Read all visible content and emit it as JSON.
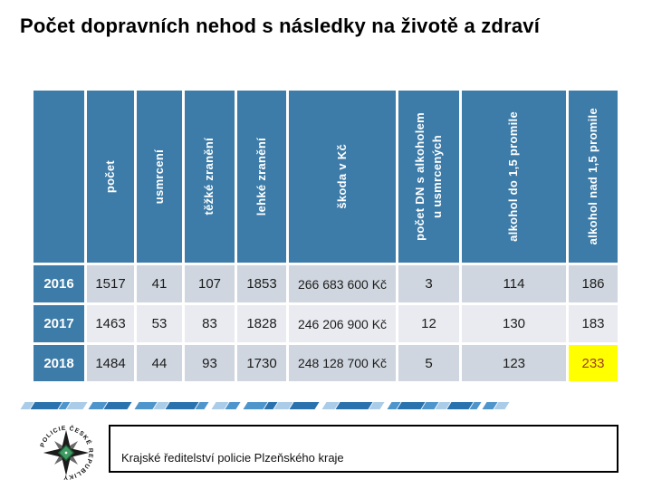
{
  "title": "Počet dopravních nehod s následky na životě a zdraví",
  "table": {
    "columns": [
      {
        "key": "pocet",
        "label": "počet"
      },
      {
        "key": "usmrceni",
        "label": "usmrcení"
      },
      {
        "key": "tezke-zraneni",
        "label": "těžké zranění"
      },
      {
        "key": "lehke-zraneni",
        "label": "lehké zranění"
      },
      {
        "key": "skoda-v-kc",
        "label": "škoda v Kč"
      },
      {
        "key": "pocet-dn-s-alkoholem-u-usmrcenych",
        "label": "počet DN s alkoholem\nu usmrcených"
      },
      {
        "key": "alkohol-do-15-promile",
        "label": "alkohol do 1,5 promile"
      },
      {
        "key": "alkohol-nad-15-promile",
        "label": "alkohol nad 1,5 promile"
      }
    ],
    "rows": [
      {
        "year": "2016",
        "values": [
          "1517",
          "41",
          "107",
          "1853",
          "266 683 600 Kč",
          "3",
          "114",
          "186"
        ]
      },
      {
        "year": "2017",
        "values": [
          "1463",
          "53",
          "83",
          "1828",
          "246 206 900 Kč",
          "12",
          "130",
          "183"
        ]
      },
      {
        "year": "2018",
        "values": [
          "1484",
          "44",
          "93",
          "1730",
          "248 128 700 Kč",
          "5",
          "123",
          "233"
        ],
        "highlight_last": true
      }
    ]
  },
  "footer": {
    "text": "Krajské ředitelství policie Plzeňského kraje",
    "logo_icon": "police-cr-emblem",
    "logo_ring_text": "POLICIE ČESKÉ REPUBLIKY"
  },
  "colors": {
    "header_blue": "#3D7CA8",
    "row_dark": "#CFD6DF",
    "row_light": "#E9EBF0",
    "highlight_bg": "#FFFF00",
    "highlight_text": "#9E3A2E",
    "band_light": "#AACCE8",
    "band_mid": "#4E95CC",
    "band_dark": "#2A72AE",
    "emblem_green": "#3F9D63"
  },
  "decor": {
    "band_segments": [
      {
        "g": 0,
        "w": 10,
        "c": "l"
      },
      {
        "g": 1,
        "w": 30,
        "c": "d"
      },
      {
        "g": 1,
        "w": 8,
        "c": "m"
      },
      {
        "g": 1,
        "w": 18,
        "c": "l"
      },
      {
        "g": 6,
        "w": 16,
        "c": "m"
      },
      {
        "g": 1,
        "w": 26,
        "c": "d"
      },
      {
        "g": 8,
        "w": 20,
        "c": "m"
      },
      {
        "g": 1,
        "w": 12,
        "c": "l"
      },
      {
        "g": 1,
        "w": 32,
        "c": "d"
      },
      {
        "g": 1,
        "w": 10,
        "c": "m"
      },
      {
        "g": 8,
        "w": 14,
        "c": "l"
      },
      {
        "g": 1,
        "w": 12,
        "c": "m"
      },
      {
        "g": 8,
        "w": 22,
        "c": "m"
      },
      {
        "g": 1,
        "w": 10,
        "c": "d"
      },
      {
        "g": 1,
        "w": 16,
        "c": "l"
      },
      {
        "g": 1,
        "w": 28,
        "c": "d"
      },
      {
        "g": 8,
        "w": 14,
        "c": "l"
      },
      {
        "g": 1,
        "w": 36,
        "c": "d"
      },
      {
        "g": 1,
        "w": 12,
        "c": "l"
      },
      {
        "g": 8,
        "w": 10,
        "c": "m"
      },
      {
        "g": 1,
        "w": 26,
        "c": "d"
      },
      {
        "g": 1,
        "w": 14,
        "c": "m"
      },
      {
        "g": 1,
        "w": 12,
        "c": "l"
      },
      {
        "g": 1,
        "w": 24,
        "c": "d"
      },
      {
        "g": 1,
        "w": 8,
        "c": "m"
      },
      {
        "g": 6,
        "w": 12,
        "c": "m"
      },
      {
        "g": 1,
        "w": 12,
        "c": "l"
      }
    ]
  }
}
